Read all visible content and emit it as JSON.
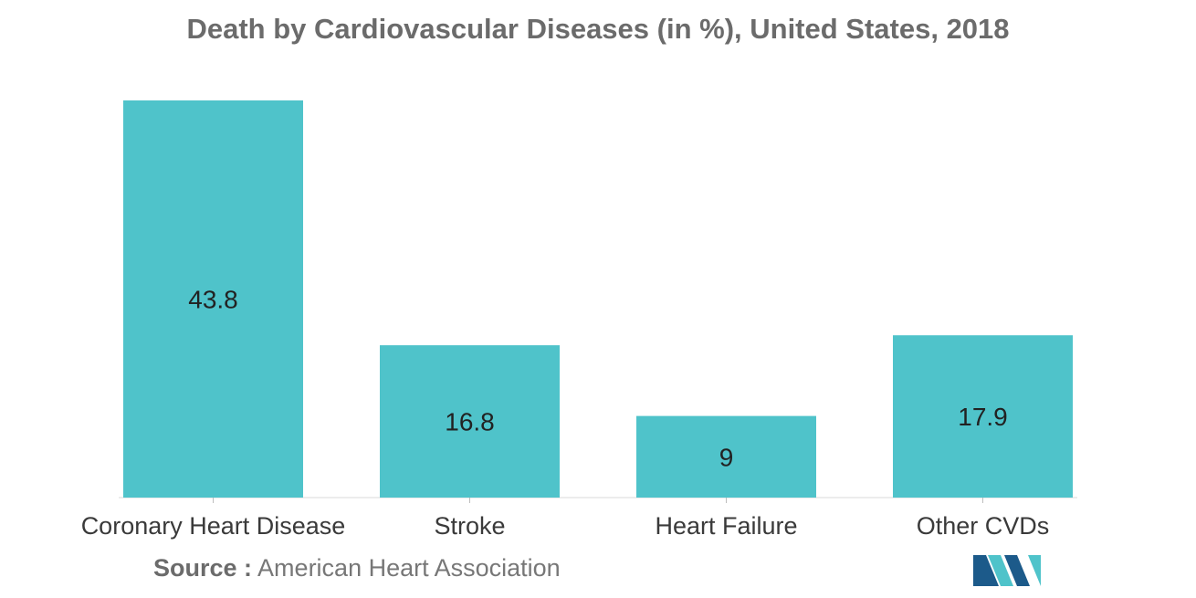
{
  "chart_data": {
    "type": "bar",
    "title": "Death by Cardiovascular Diseases (in %), United States, 2018",
    "categories": [
      "Coronary Heart Disease",
      "Stroke",
      "Heart Failure",
      "Other CVDs"
    ],
    "values": [
      43.8,
      16.8,
      9,
      17.9
    ],
    "value_labels": [
      "43.8",
      "16.8",
      "9",
      "17.9"
    ],
    "xlabel": "",
    "ylabel": "",
    "ylim": [
      0,
      43.8
    ],
    "grid": false,
    "legend": "none",
    "bar_color": "#4fc3ca"
  },
  "source": {
    "label": "Source :",
    "text": "American Heart Association"
  },
  "colors": {
    "bar": "#4fc3ca",
    "title": "#6b6b6b",
    "logo_dark": "#1c5a8a",
    "logo_light": "#4fc3ca"
  }
}
